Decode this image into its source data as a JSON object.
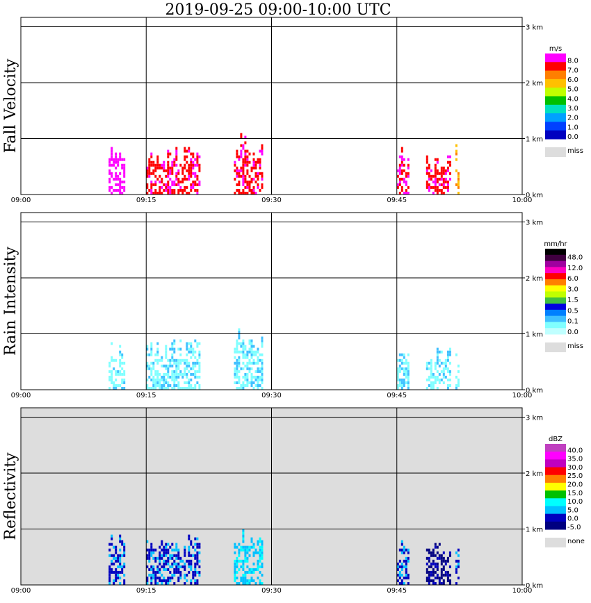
{
  "title": "2019-09-25   09:00-10:00 UTC",
  "chart_data": [
    {
      "type": "heatmap",
      "panel": "Fall Velocity",
      "unit": "m/s",
      "x_ticks": [
        "09:00",
        "09:15",
        "09:30",
        "09:45",
        "10:00"
      ],
      "y_ticks": [
        "0 km",
        "1 km",
        "2 km",
        "3 km"
      ],
      "xlim_minutes": [
        0,
        60
      ],
      "ylim_km": [
        0,
        3.0
      ],
      "grid": true,
      "colorbar": {
        "labels": [
          "8.0",
          "7.0",
          "6.0",
          "5.0",
          "4.0",
          "3.0",
          "2.0",
          "1.0",
          "0.0"
        ],
        "colors": [
          "#ff00ff",
          "#ff0000",
          "#ff7f00",
          "#ffc000",
          "#c0ff00",
          "#00c000",
          "#00e0c0",
          "#00a0ff",
          "#0040ff",
          "#0000c0"
        ],
        "miss_label": "miss",
        "miss_color": "#dddddd"
      },
      "echo_cells": [
        {
          "start_min": 10.5,
          "end_min": 12.5,
          "top_km": 0.9,
          "class": 0
        },
        {
          "start_min": 15.0,
          "end_min": 18.5,
          "top_km": 0.9,
          "class": 1
        },
        {
          "start_min": 18.5,
          "end_min": 21.5,
          "top_km": 0.9,
          "class": 1
        },
        {
          "start_min": 25.5,
          "end_min": 29.0,
          "top_km": 1.1,
          "class": 1
        },
        {
          "start_min": 45.0,
          "end_min": 46.5,
          "top_km": 0.85,
          "class": 1
        },
        {
          "start_min": 48.5,
          "end_min": 51.5,
          "top_km": 0.75,
          "class": 1
        },
        {
          "start_min": 52.0,
          "end_min": 52.5,
          "top_km": 1.0,
          "class": 3
        }
      ]
    },
    {
      "type": "heatmap",
      "panel": "Rain Intensity",
      "unit": "mm/hr",
      "x_ticks": [
        "09:00",
        "09:15",
        "09:30",
        "09:45",
        "10:00"
      ],
      "y_ticks": [
        "0 km",
        "1 km",
        "2 km",
        "3 km"
      ],
      "xlim_minutes": [
        0,
        60
      ],
      "ylim_km": [
        0,
        3.0
      ],
      "grid": true,
      "colorbar": {
        "labels": [
          "48.0",
          "12.0",
          "6.0",
          "3.0",
          "1.5",
          "0.5",
          "0.1",
          "0.0"
        ],
        "colors": [
          "#000000",
          "#400040",
          "#a000a0",
          "#ff00c0",
          "#ff0000",
          "#ff8000",
          "#ffff00",
          "#c0ff00",
          "#40c040",
          "#0000e0",
          "#0080ff",
          "#40c0ff",
          "#80ffff",
          "#c0ffff"
        ],
        "miss_label": "miss",
        "miss_color": "#dddddd"
      },
      "echo_cells": [
        {
          "start_min": 10.5,
          "end_min": 12.5,
          "top_km": 0.9,
          "class": 12
        },
        {
          "start_min": 15.0,
          "end_min": 18.5,
          "top_km": 0.9,
          "class": 12
        },
        {
          "start_min": 18.5,
          "end_min": 21.5,
          "top_km": 0.9,
          "class": 12
        },
        {
          "start_min": 25.5,
          "end_min": 29.0,
          "top_km": 1.1,
          "class": 12
        },
        {
          "start_min": 45.0,
          "end_min": 46.5,
          "top_km": 0.85,
          "class": 12
        },
        {
          "start_min": 48.5,
          "end_min": 51.5,
          "top_km": 0.75,
          "class": 12
        },
        {
          "start_min": 52.0,
          "end_min": 52.5,
          "top_km": 1.0,
          "class": 12
        }
      ]
    },
    {
      "type": "heatmap",
      "panel": "Reflectivity",
      "unit": "dBZ",
      "x_ticks": [
        "09:00",
        "09:15",
        "09:30",
        "09:45",
        "10:00"
      ],
      "y_ticks": [
        "0 km",
        "1 km",
        "2 km",
        "3 km"
      ],
      "xlim_minutes": [
        0,
        60
      ],
      "ylim_km": [
        0,
        3.0
      ],
      "grid": true,
      "background": "none",
      "colorbar": {
        "labels": [
          "40.0",
          "35.0",
          "30.0",
          "25.0",
          "20.0",
          "15.0",
          "10.0",
          "5.0",
          "0.0",
          "-5.0"
        ],
        "colors": [
          "#c040c0",
          "#ff00ff",
          "#c000c0",
          "#ff0000",
          "#ff8000",
          "#ffff00",
          "#00c000",
          "#00ffff",
          "#00c0ff",
          "#0000c0",
          "#000080"
        ],
        "miss_label": "none",
        "miss_color": "#dddddd"
      },
      "echo_cells": [
        {
          "start_min": 10.5,
          "end_min": 12.5,
          "top_km": 0.9,
          "class": 9
        },
        {
          "start_min": 15.0,
          "end_min": 18.5,
          "top_km": 0.9,
          "class": 9
        },
        {
          "start_min": 18.5,
          "end_min": 21.5,
          "top_km": 0.9,
          "class": 9
        },
        {
          "start_min": 25.5,
          "end_min": 29.0,
          "top_km": 1.1,
          "class": 8
        },
        {
          "start_min": 45.0,
          "end_min": 46.5,
          "top_km": 0.85,
          "class": 9
        },
        {
          "start_min": 48.5,
          "end_min": 51.5,
          "top_km": 0.75,
          "class": 10
        },
        {
          "start_min": 52.0,
          "end_min": 52.5,
          "top_km": 1.0,
          "class": 9
        }
      ]
    }
  ]
}
